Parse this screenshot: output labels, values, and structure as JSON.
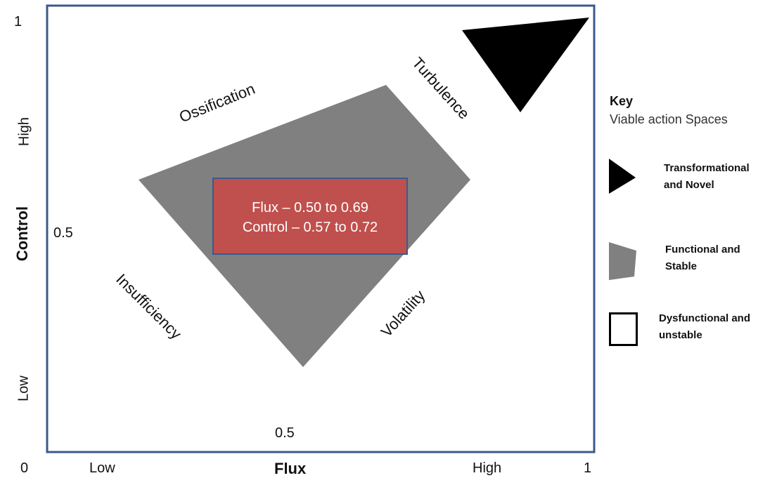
{
  "axes": {
    "x_title": "Flux",
    "y_title": "Control",
    "x_low": "Low",
    "x_high": "High",
    "y_low": "Low",
    "y_high": "High",
    "origin": "0",
    "x_max": "1",
    "y_max": "1",
    "x_mid": "0.5",
    "y_mid": "0.5"
  },
  "regions": {
    "ossification": "Ossification",
    "turbulence": "Turbulence",
    "insufficiency": "Insufficiency",
    "volatility": "Volatility"
  },
  "highlight": {
    "flux_range": "Flux – 0.50 to 0.69",
    "control_range": "Control – 0.57 to 0.72"
  },
  "key": {
    "title": "Key",
    "subtitle": "Viable action Spaces",
    "items": [
      {
        "line1": "Transformational",
        "line2": "and Novel",
        "icon": "black-triangle"
      },
      {
        "line1": "Functional and",
        "line2": "Stable",
        "icon": "grey-trapezoid"
      },
      {
        "line1": "Dysfunctional and",
        "line2": "unstable",
        "icon": "white-square"
      }
    ]
  },
  "colors": {
    "frame": "#3a5a8a",
    "functional": "#808080",
    "transformational": "#000000",
    "highlight": "#c0504d"
  }
}
